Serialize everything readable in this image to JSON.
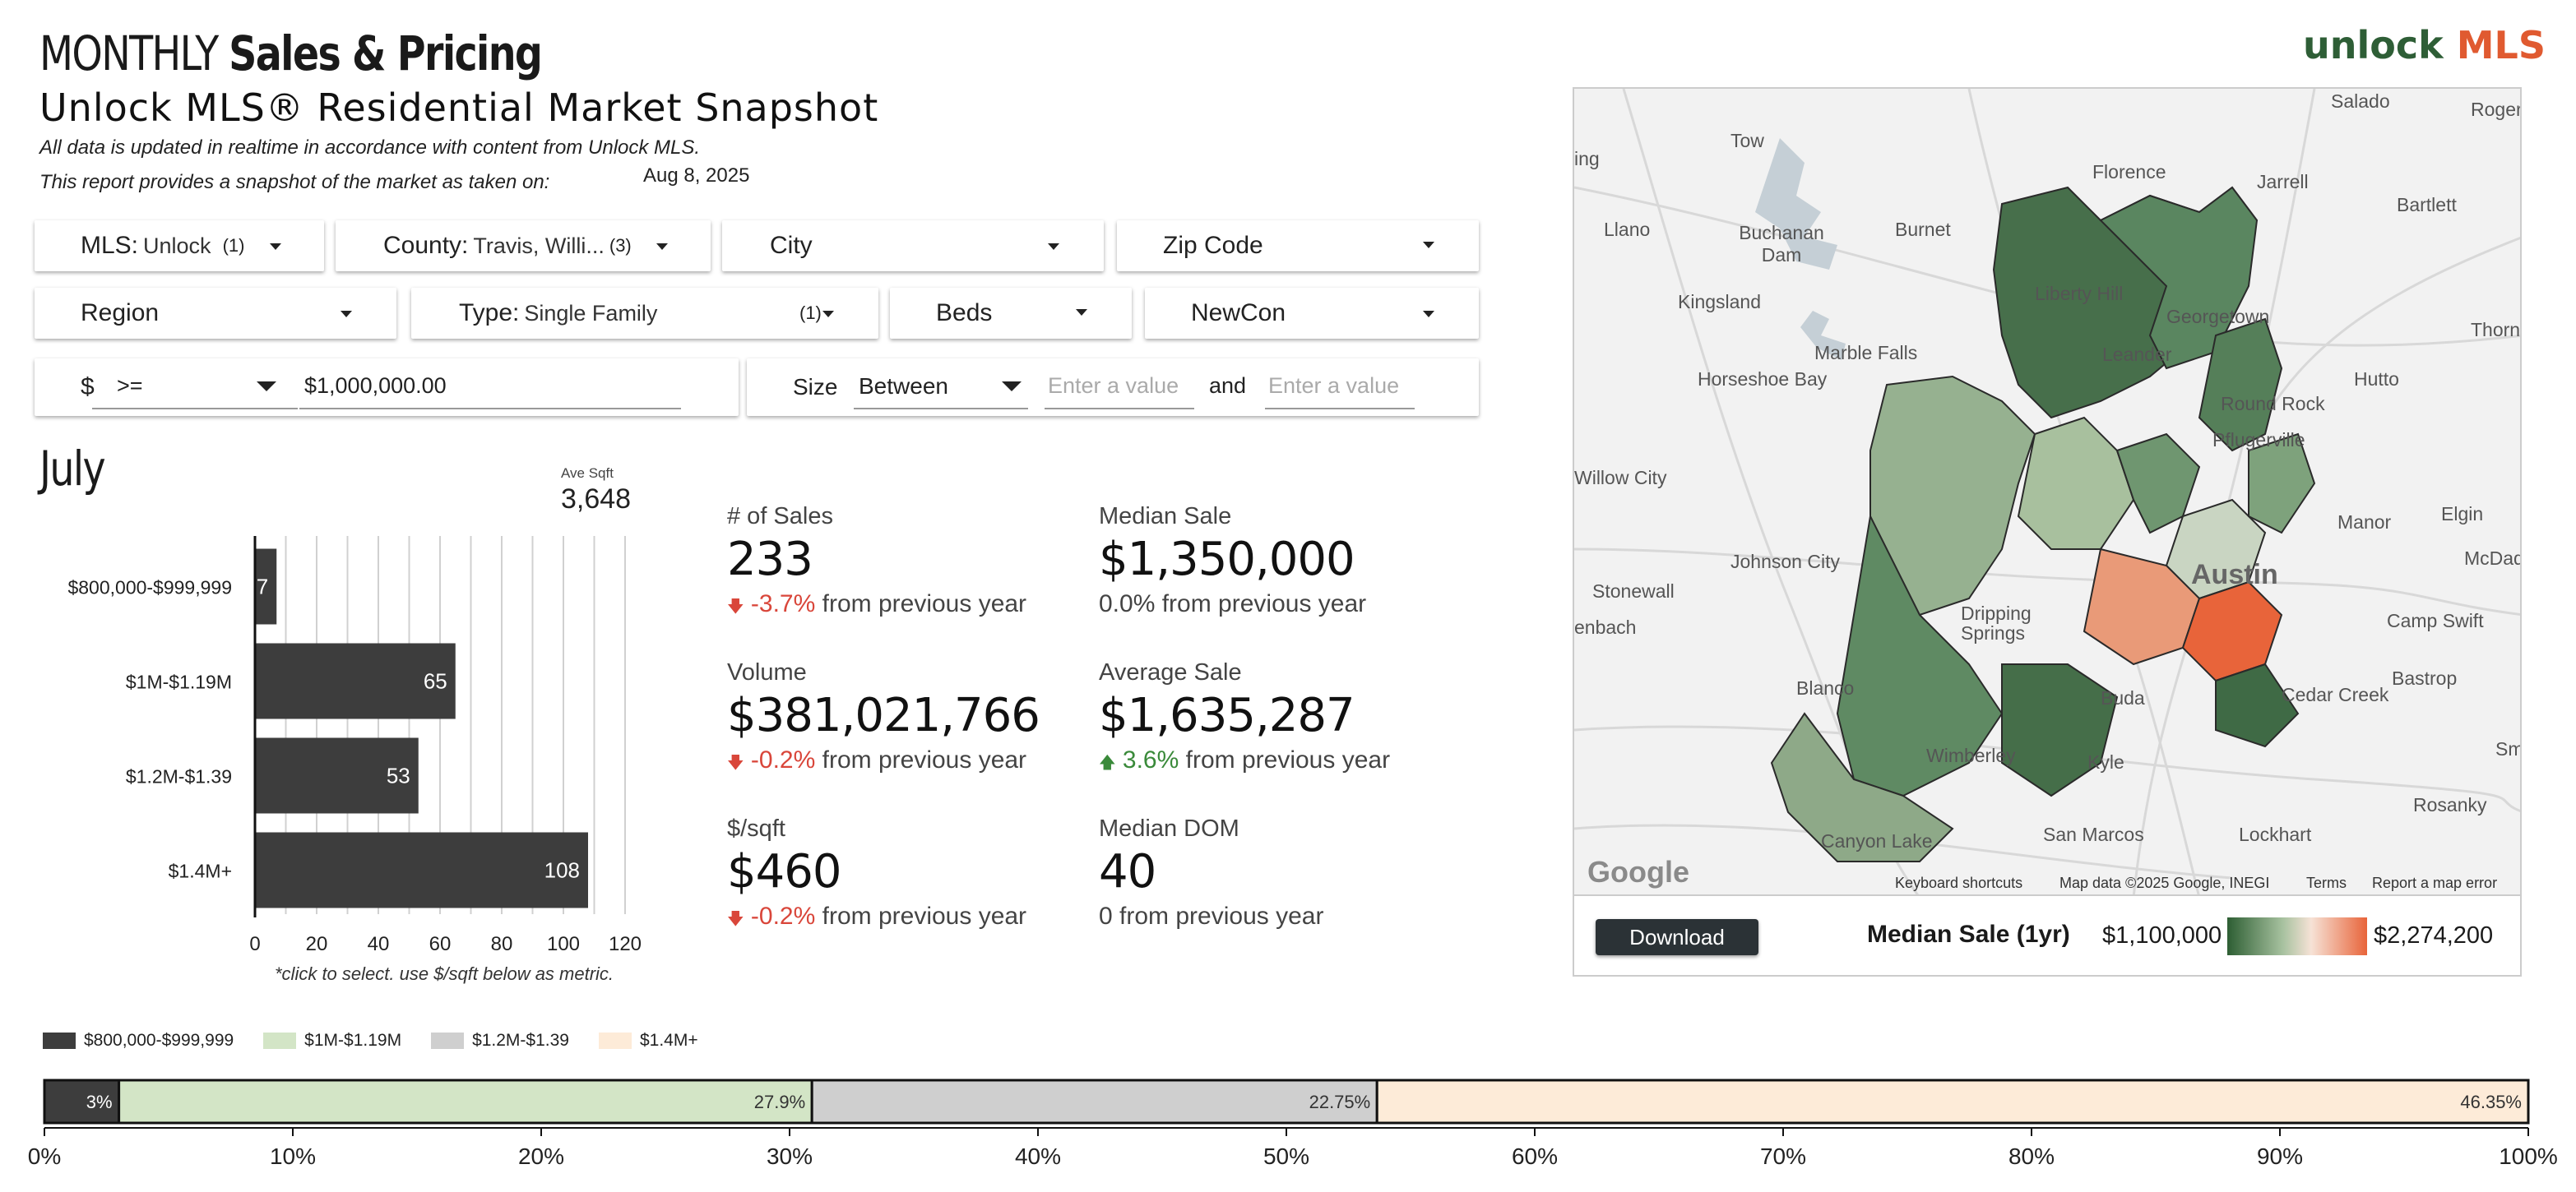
{
  "header": {
    "title_light": "MONTHLY",
    "title_bold": "Sales & Pricing",
    "subtitle": "Unlock MLS®  Residential Market Snapshot",
    "note1": "All data is updated in realtime in accordance with content from Unlock MLS.",
    "note2": "This report provides a snapshot of the market as taken on:",
    "snapshot_date": "Aug 8, 2025",
    "brand_a": "unlock",
    "brand_b": "MLS"
  },
  "filters": {
    "mls": {
      "label": "MLS:",
      "value": "Unlock",
      "count": "(1)"
    },
    "county": {
      "label": "County:",
      "value": "Travis, Willi...",
      "count": "(3)"
    },
    "city": {
      "label": "City"
    },
    "zip": {
      "label": "Zip Code"
    },
    "region": {
      "label": "Region"
    },
    "type": {
      "label": "Type:",
      "value": "Single Family",
      "count": "(1)"
    },
    "beds": {
      "label": "Beds"
    },
    "newcon": {
      "label": "NewCon"
    },
    "price": {
      "label": "$",
      "operator": ">=",
      "value": "$1,000,000.00"
    },
    "size": {
      "label": "Size",
      "operator": "Between",
      "placeholder": "Enter a value",
      "and_label": "and"
    }
  },
  "summary": {
    "month": "July",
    "ave_sqft_label": "Ave Sqft",
    "ave_sqft": "3,648",
    "hint": "*click to select.  use $/sqft below as metric."
  },
  "kpis": {
    "sales": {
      "label": "# of Sales",
      "value": "233",
      "change": "-3.7%",
      "suffix": "from previous year"
    },
    "median_sale": {
      "label": "Median Sale",
      "value": "$1,350,000",
      "change": "0.0% from previous year"
    },
    "volume": {
      "label": "Volume",
      "value": "$381,021,766",
      "change": "-0.2%",
      "suffix": "from previous year"
    },
    "average_sale": {
      "label": "Average Sale",
      "value": "$1,635,287",
      "change": "3.6%",
      "suffix": "from previous year"
    },
    "price_sqft": {
      "label": "$/sqft",
      "value": "$460",
      "change": "-0.2%",
      "suffix": "from previous year"
    },
    "median_dom": {
      "label": "Median DOM",
      "value": "40",
      "change": "0 from previous year"
    },
    "down_arrow": "🡇",
    "up_arrow": "🡅"
  },
  "map": {
    "labels": [
      "Salado",
      "Rogers",
      "Tow",
      "Florence",
      "Jarrell",
      "Bartlett",
      "Llano",
      "Buchanan Dam",
      "Burnet",
      "Georgetown",
      "Liberty Hill",
      "Kingsland",
      "Leander",
      "Thorndale",
      "Marble Falls",
      "Horseshoe Bay",
      "Round Rock",
      "Hutto",
      "Pflugerville",
      "Willow City",
      "Manor",
      "Elgin",
      "Johnson City",
      "McDade",
      "Stonewall",
      "Austin",
      "Camp Swift",
      "enbach",
      "Dripping Springs",
      "Bastrop",
      "Blanco",
      "Buda",
      "Cedar Creek",
      "Kyle",
      "Wimberley",
      "Rosanky",
      "Canyon Lake",
      "San Marcos",
      "Lockhart",
      "ing",
      "Sm"
    ],
    "footer": [
      "Keyboard shortcuts",
      "Map data ©2025 Google, INEGI",
      "Terms",
      "Report a map error"
    ],
    "google": "Google",
    "download": "Download",
    "legend_title": "Median Sale (1yr)",
    "legend_min": "$1,100,000",
    "legend_max": "$2,274,200",
    "colors": {
      "low": "#2d5e33",
      "mid": "#f6e2d6",
      "high": "#e8643a"
    }
  },
  "chart_data": [
    {
      "type": "bar",
      "orientation": "horizontal",
      "categories": [
        "$800,000-$999,999",
        "$1M-$1.19M",
        "$1.2M-$1.39",
        "$1.4M+"
      ],
      "values": [
        7,
        65,
        53,
        108
      ],
      "xlim": [
        0,
        120
      ],
      "xticks": [
        0,
        20,
        40,
        60,
        80,
        100,
        120
      ],
      "grid": true,
      "color": "#3d3d3d"
    },
    {
      "type": "bar",
      "orientation": "horizontal-stacked",
      "series": [
        {
          "name": "$800,000-$999,999",
          "value": 3,
          "label": "3%",
          "color": "#3d3d3d"
        },
        {
          "name": "$1M-$1.19M",
          "value": 27.9,
          "label": "27.9%",
          "color": "#d3e5c6"
        },
        {
          "name": "$1.2M-$1.39",
          "value": 22.75,
          "label": "22.75%",
          "color": "#cfcfcf"
        },
        {
          "name": "$1.4M+",
          "value": 46.35,
          "label": "46.35%",
          "color": "#fdebd8"
        }
      ],
      "xlim": [
        0,
        100
      ],
      "xticks": [
        "0%",
        "10%",
        "20%",
        "30%",
        "40%",
        "50%",
        "60%",
        "70%",
        "80%",
        "90%",
        "100%"
      ],
      "legend": "top-left"
    }
  ]
}
